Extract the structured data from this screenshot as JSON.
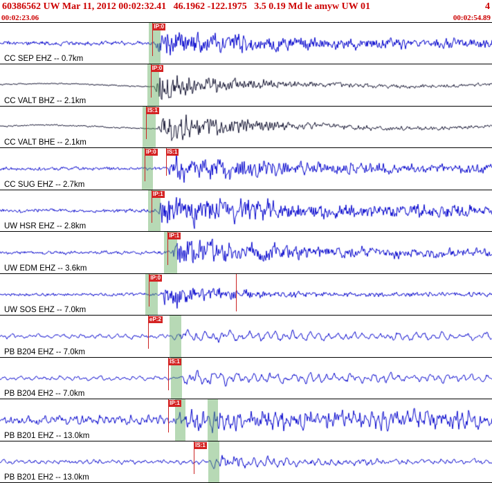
{
  "header": {
    "event_line": "60386562 UW Mar 11, 2012 00:02:32.41   46.1962 -122.1975   3.5 0.19 Md le amyw UW 01",
    "right_value": "4",
    "start_time": "00:02:23.06",
    "end_time": "00:02:54.89"
  },
  "colors": {
    "header_text": "#cc0000",
    "trace_blue": "#0000cc",
    "trace_dark": "#10102e",
    "pick_flag": "#d42222",
    "pick_line": "#cc2222",
    "band_fill": "rgba(95,170,90,0.45)",
    "separator": "#000000",
    "background": "#ffffff"
  },
  "traces": [
    {
      "label": "CC SEP EHZ -- 0.7km",
      "color_key": "trace_blue",
      "picks": [
        {
          "label": "IP:0",
          "frac": 0.31,
          "len": 0.8
        }
      ],
      "bands": [
        {
          "frac": 0.303,
          "width": 0.024
        }
      ],
      "render": {
        "seed": 1,
        "onset": 0.316,
        "pre": 3.2,
        "burst": 21,
        "coda": 6,
        "decay": 170,
        "freq": 1.15,
        "wander": 0,
        "periodic": 0.25
      }
    },
    {
      "label": "CC VALT BHZ -- 2.1km",
      "color_key": "trace_dark",
      "picks": [
        {
          "label": "IP:0",
          "frac": 0.306,
          "len": 0.8
        }
      ],
      "bands": [
        {
          "frac": 0.3,
          "width": 0.024
        }
      ],
      "render": {
        "seed": 2,
        "onset": 0.314,
        "pre": 0.9,
        "burst": 24,
        "coda": 2.2,
        "decay": 95,
        "freq": 0.95,
        "wander": 2.2,
        "periodic": 0.2
      }
    },
    {
      "label": "CC VALT BHE -- 2.1km",
      "color_key": "trace_dark",
      "picks": [
        {
          "label": "IS:1",
          "frac": 0.297,
          "len": 0.8
        }
      ],
      "bands": [
        {
          "frac": 0.29,
          "width": 0.026
        }
      ],
      "render": {
        "seed": 3,
        "onset": 0.321,
        "pre": 1.1,
        "burst": 26,
        "coda": 2.0,
        "decay": 115,
        "freq": 0.85,
        "wander": 2.6,
        "periodic": 0.2
      }
    },
    {
      "label": "CC SUG EHZ -- 2.7km",
      "color_key": "trace_blue",
      "picks": [
        {
          "label": "IP:0",
          "frac": 0.294,
          "len": 0.8
        },
        {
          "label": "IS:1",
          "frac": 0.337,
          "len": 0.66
        }
      ],
      "bands": [
        {
          "frac": 0.288,
          "width": 0.023
        }
      ],
      "render": {
        "seed": 4,
        "onset": 0.342,
        "pre": 2.6,
        "burst": 22,
        "coda": 6,
        "decay": 150,
        "freq": 1.05,
        "wander": 0,
        "periodic": 0.25
      }
    },
    {
      "label": "UW HSR EHZ -- 2.8km",
      "color_key": "trace_blue",
      "picks": [
        {
          "label": "IP:1",
          "frac": 0.308,
          "len": 0.8
        }
      ],
      "bands": [
        {
          "frac": 0.301,
          "width": 0.025
        }
      ],
      "render": {
        "seed": 5,
        "onset": 0.32,
        "pre": 2.8,
        "burst": 23,
        "coda": 7.5,
        "decay": 190,
        "freq": 1.2,
        "wander": 0,
        "periodic": 0.25
      }
    },
    {
      "label": "UW EDM EHZ -- 3.6km",
      "color_key": "trace_blue",
      "picks": [
        {
          "label": "IP:1",
          "frac": 0.341,
          "len": 0.8
        }
      ],
      "bands": [
        {
          "frac": 0.334,
          "width": 0.026
        }
      ],
      "render": {
        "seed": 6,
        "onset": 0.35,
        "pre": 2.5,
        "burst": 23,
        "coda": 5.5,
        "decay": 150,
        "freq": 1.1,
        "wander": 0,
        "periodic": 0.25
      }
    },
    {
      "label": "UW SOS EHZ -- 7.0km",
      "color_key": "trace_blue",
      "picks": [
        {
          "label": "IP:0",
          "frac": 0.303,
          "len": 0.8
        },
        {
          "label": "",
          "frac": 0.479,
          "len": 0.92
        }
      ],
      "bands": [
        {
          "frac": 0.296,
          "width": 0.024
        }
      ],
      "render": {
        "seed": 7,
        "onset": 0.33,
        "pre": 2.4,
        "burst": 22,
        "coda": 3.5,
        "decay": 75,
        "freq": 1.1,
        "wander": 0,
        "periodic": 0.25
      }
    },
    {
      "label": "PB B204 EHZ -- 7.0km",
      "color_key": "trace_blue",
      "picks": [
        {
          "label": "eP:2",
          "frac": 0.301,
          "len": 0.8
        }
      ],
      "bands": [
        {
          "frac": 0.344,
          "width": 0.024
        }
      ],
      "render": {
        "seed": 8,
        "onset": 0.35,
        "pre": 4.2,
        "burst": 11,
        "coda": 6,
        "decay": 260,
        "freq": 0.55,
        "wander": 0,
        "periodic": 0.65
      }
    },
    {
      "label": "PB B204 EH2 -- 7.0km",
      "color_key": "trace_blue",
      "picks": [
        {
          "label": "IS:1",
          "frac": 0.342,
          "len": 0.8
        }
      ],
      "bands": [
        {
          "frac": 0.347,
          "width": 0.023
        }
      ],
      "render": {
        "seed": 9,
        "onset": 0.368,
        "pre": 4.2,
        "burst": 12.5,
        "coda": 6,
        "decay": 220,
        "freq": 0.6,
        "wander": 0,
        "periodic": 0.65
      }
    },
    {
      "label": "PB B201 EHZ -- 13.0km",
      "color_key": "trace_blue",
      "picks": [
        {
          "label": "IP:1",
          "frac": 0.342,
          "len": 0.8
        }
      ],
      "bands": [
        {
          "frac": 0.356,
          "width": 0.021
        },
        {
          "frac": 0.422,
          "width": 0.021
        }
      ],
      "render": {
        "seed": 10,
        "onset": 0.36,
        "pre": 7.5,
        "burst": 20,
        "coda": 14,
        "decay": 600,
        "freq": 0.8,
        "wander": 0,
        "periodic": 0.5
      }
    },
    {
      "label": "PB B201 EH2 -- 13.0km",
      "color_key": "trace_blue",
      "picks": [
        {
          "label": "IS:1",
          "frac": 0.394,
          "len": 0.8
        }
      ],
      "bands": [
        {
          "frac": 0.424,
          "width": 0.022
        }
      ],
      "render": {
        "seed": 11,
        "onset": 0.428,
        "pre": 4.0,
        "burst": 14,
        "coda": 4.5,
        "decay": 110,
        "freq": 0.75,
        "wander": 0,
        "periodic": 0.55
      }
    }
  ]
}
